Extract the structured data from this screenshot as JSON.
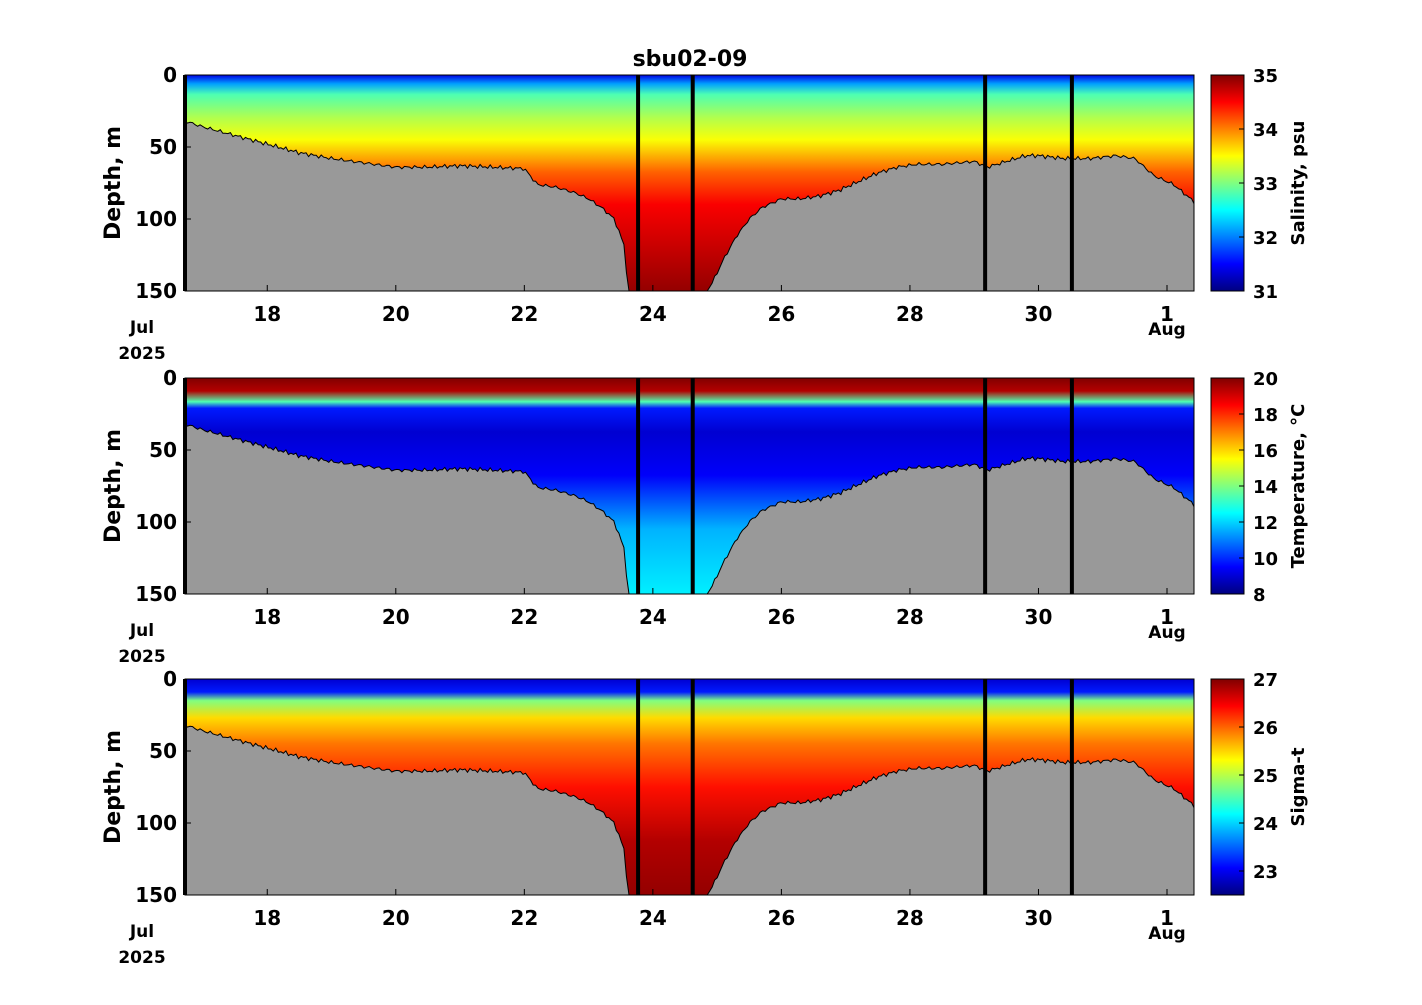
{
  "chart_data": {
    "type": "heatmap",
    "title": "sbu02-09",
    "shared_x": {
      "range": [
        "Jul 16.7",
        "Aug 1.4"
      ],
      "tick_labels": [
        "18",
        "20",
        "22",
        "24",
        "26",
        "28",
        "30",
        "1"
      ],
      "tick_days": [
        18,
        20,
        22,
        24,
        26,
        28,
        30,
        32
      ],
      "month_labels": [
        "Jul",
        "Aug"
      ],
      "year_label": "2025",
      "xlim_days": [
        16.72,
        32.42
      ]
    },
    "vertical_lines_days": [
      16.72,
      23.77,
      24.62,
      29.17,
      30.52
    ],
    "bottom_depth_profile": {
      "days": [
        16.72,
        17.0,
        17.5,
        18.0,
        18.5,
        19.0,
        19.5,
        20.0,
        20.5,
        21.0,
        21.5,
        22.0,
        22.2,
        22.5,
        22.8,
        23.0,
        23.2,
        23.4,
        23.55,
        23.62,
        24.85,
        24.95,
        25.1,
        25.3,
        25.5,
        25.7,
        26.0,
        26.3,
        26.6,
        26.9,
        27.2,
        27.5,
        27.8,
        28.1,
        28.5,
        29.0,
        29.2,
        29.5,
        29.8,
        30.0,
        30.4,
        30.8,
        31.2,
        31.5,
        31.8,
        32.1,
        32.42
      ],
      "depths": [
        32,
        36,
        42,
        48,
        54,
        58,
        61,
        64,
        64,
        63,
        64,
        65,
        76,
        78,
        82,
        86,
        92,
        100,
        118,
        150,
        150,
        142,
        128,
        112,
        100,
        92,
        86,
        86,
        84,
        80,
        74,
        68,
        64,
        62,
        62,
        60,
        64,
        60,
        56,
        56,
        58,
        58,
        56,
        58,
        70,
        76,
        88
      ]
    },
    "panels": [
      {
        "ylabel": "Depth, m",
        "ylim": [
          150,
          0
        ],
        "y_ticks": [
          "0",
          "50",
          "100",
          "150"
        ],
        "colorbar": {
          "label": "Salinity, psu",
          "range": [
            31,
            35
          ],
          "ticks": [
            "31",
            "32",
            "33",
            "34",
            "35"
          ]
        }
      },
      {
        "ylabel": "Depth, m",
        "ylim": [
          150,
          0
        ],
        "y_ticks": [
          "0",
          "50",
          "100",
          "150"
        ],
        "colorbar": {
          "label": "Temperature, °C",
          "range": [
            8,
            20
          ],
          "ticks": [
            "8",
            "10",
            "12",
            "14",
            "16",
            "18",
            "20"
          ]
        }
      },
      {
        "ylabel": "Depth, m",
        "ylim": [
          150,
          0
        ],
        "y_ticks": [
          "0",
          "50",
          "100",
          "150"
        ],
        "colorbar": {
          "label": "Sigma-t",
          "range": [
            22.5,
            27
          ],
          "ticks": [
            "23",
            "24",
            "25",
            "26",
            "27"
          ]
        }
      }
    ],
    "colormap": "jet",
    "grid": false
  }
}
